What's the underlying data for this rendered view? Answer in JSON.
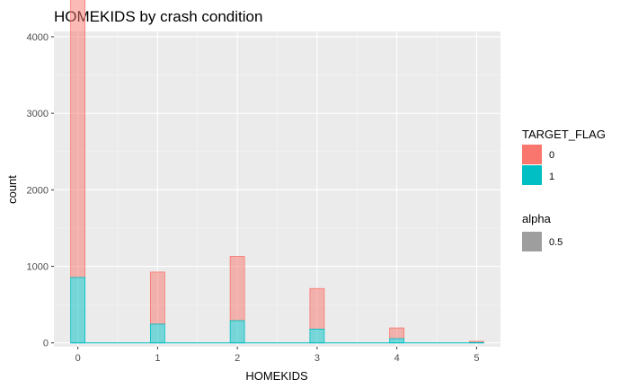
{
  "chart_data": {
    "type": "bar",
    "title": "HOMEKIDS by crash condition",
    "xlabel": "HOMEKIDS",
    "ylabel": "count",
    "x_ticks": [
      "0",
      "1",
      "2",
      "3",
      "4",
      "5"
    ],
    "y_ticks": [
      "0",
      "1000",
      "2000",
      "3000",
      "4000"
    ],
    "xlim": [
      -0.3,
      5.3
    ],
    "ylim": [
      -50,
      4070
    ],
    "grid": true,
    "stacked": true,
    "series": [
      {
        "name": "0",
        "color": "#F8766D",
        "points": [
          {
            "x": 0,
            "y": 3880
          },
          {
            "x": 1,
            "y": 680
          },
          {
            "x": 2,
            "y": 840
          },
          {
            "x": 3,
            "y": 530
          },
          {
            "x": 4,
            "y": 140
          },
          {
            "x": 5,
            "y": 15
          }
        ]
      },
      {
        "name": "1",
        "color": "#00BFC4",
        "points": [
          {
            "x": 0,
            "y": 855
          },
          {
            "x": 1,
            "y": 245
          },
          {
            "x": 2,
            "y": 290
          },
          {
            "x": 3,
            "y": 180
          },
          {
            "x": 4,
            "y": 55
          },
          {
            "x": 5,
            "y": 5
          }
        ]
      }
    ],
    "legend": {
      "position": "right",
      "fill_title": "TARGET_FLAG",
      "fill_entries": [
        "0",
        "1"
      ],
      "alpha_title": "alpha",
      "alpha_entries": [
        "0.5"
      ],
      "alpha_color": "#9E9E9E"
    }
  }
}
